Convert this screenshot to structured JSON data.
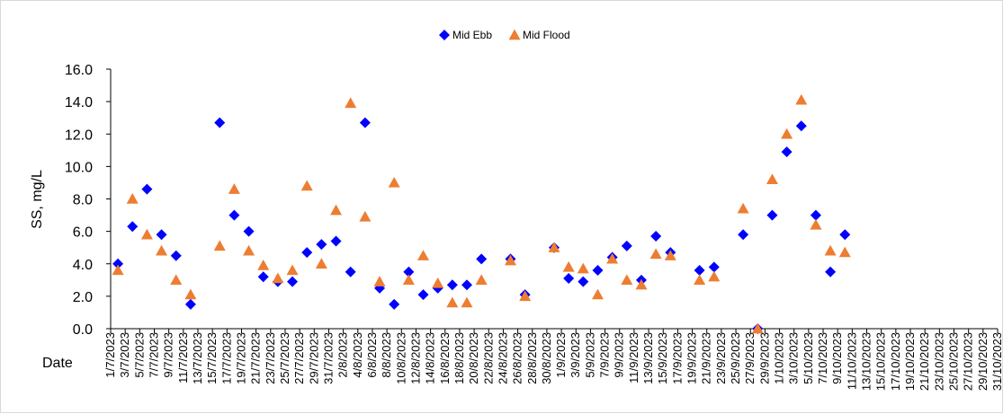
{
  "chart_data": {
    "type": "scatter",
    "xlabel": "Date",
    "ylabel": "SS, mg/L",
    "ylim": [
      0,
      16
    ],
    "yticks": [
      "0.0",
      "2.0",
      "4.0",
      "6.0",
      "8.0",
      "10.0",
      "12.0",
      "14.0",
      "16.0"
    ],
    "xlim": [
      "1/7/2023",
      "31/10/2023"
    ],
    "xtick_labels": [
      "1/7/2023",
      "3/7/2023",
      "5/7/2023",
      "7/7/2023",
      "9/7/2023",
      "11/7/2023",
      "13/7/2023",
      "15/7/2023",
      "17/7/2023",
      "19/7/2023",
      "21/7/2023",
      "23/7/2023",
      "25/7/2023",
      "27/7/2023",
      "29/7/2023",
      "31/7/2023",
      "2/8/2023",
      "4/8/2023",
      "6/8/2023",
      "8/8/2023",
      "10/8/2023",
      "12/8/2023",
      "14/8/2023",
      "16/8/2023",
      "18/8/2023",
      "20/8/2023",
      "22/8/2023",
      "24/8/2023",
      "26/8/2023",
      "28/8/2023",
      "30/8/2023",
      "1/9/2023",
      "3/9/2023",
      "5/9/2023",
      "7/9/2023",
      "9/9/2023",
      "11/9/2023",
      "13/9/2023",
      "15/9/2023",
      "17/9/2023",
      "19/9/2023",
      "21/9/2023",
      "23/9/2023",
      "25/9/2023",
      "27/9/2023",
      "29/9/2023",
      "1/10/2023",
      "3/10/2023",
      "5/10/2023",
      "7/10/2023",
      "9/10/2023",
      "11/10/2023",
      "13/10/2023",
      "15/10/2023",
      "17/10/2023",
      "19/10/2023",
      "21/10/2023",
      "23/10/2023",
      "25/10/2023",
      "27/10/2023",
      "29/10/2023",
      "31/10/2023"
    ],
    "legend_position": "top",
    "series": [
      {
        "name": "Mid Ebb",
        "marker": "diamond",
        "color": "#0000ff",
        "points": [
          {
            "x": "2/7/2023",
            "y": 4.0
          },
          {
            "x": "4/7/2023",
            "y": 6.3
          },
          {
            "x": "6/7/2023",
            "y": 8.6
          },
          {
            "x": "8/7/2023",
            "y": 5.8
          },
          {
            "x": "10/7/2023",
            "y": 4.5
          },
          {
            "x": "12/7/2023",
            "y": 1.5
          },
          {
            "x": "16/7/2023",
            "y": 12.7
          },
          {
            "x": "18/7/2023",
            "y": 7.0
          },
          {
            "x": "20/7/2023",
            "y": 6.0
          },
          {
            "x": "22/7/2023",
            "y": 3.2
          },
          {
            "x": "24/7/2023",
            "y": 2.9
          },
          {
            "x": "26/7/2023",
            "y": 2.9
          },
          {
            "x": "28/7/2023",
            "y": 4.7
          },
          {
            "x": "30/7/2023",
            "y": 5.2
          },
          {
            "x": "1/8/2023",
            "y": 5.4
          },
          {
            "x": "3/8/2023",
            "y": 3.5
          },
          {
            "x": "5/8/2023",
            "y": 12.7
          },
          {
            "x": "7/8/2023",
            "y": 2.5
          },
          {
            "x": "9/8/2023",
            "y": 1.5
          },
          {
            "x": "11/8/2023",
            "y": 3.5
          },
          {
            "x": "13/8/2023",
            "y": 2.1
          },
          {
            "x": "15/8/2023",
            "y": 2.5
          },
          {
            "x": "17/8/2023",
            "y": 2.7
          },
          {
            "x": "19/8/2023",
            "y": 2.7
          },
          {
            "x": "21/8/2023",
            "y": 4.3
          },
          {
            "x": "25/8/2023",
            "y": 4.3
          },
          {
            "x": "27/8/2023",
            "y": 2.1
          },
          {
            "x": "31/8/2023",
            "y": 5.0
          },
          {
            "x": "2/9/2023",
            "y": 3.1
          },
          {
            "x": "4/9/2023",
            "y": 2.9
          },
          {
            "x": "6/9/2023",
            "y": 3.6
          },
          {
            "x": "8/9/2023",
            "y": 4.4
          },
          {
            "x": "10/9/2023",
            "y": 5.1
          },
          {
            "x": "12/9/2023",
            "y": 3.0
          },
          {
            "x": "14/9/2023",
            "y": 5.7
          },
          {
            "x": "16/9/2023",
            "y": 4.7
          },
          {
            "x": "20/9/2023",
            "y": 3.6
          },
          {
            "x": "22/9/2023",
            "y": 3.8
          },
          {
            "x": "26/9/2023",
            "y": 5.8
          },
          {
            "x": "28/9/2023",
            "y": 0.0
          },
          {
            "x": "30/9/2023",
            "y": 7.0
          },
          {
            "x": "2/10/2023",
            "y": 10.9
          },
          {
            "x": "4/10/2023",
            "y": 12.5
          },
          {
            "x": "6/10/2023",
            "y": 7.0
          },
          {
            "x": "8/10/2023",
            "y": 3.5
          },
          {
            "x": "10/10/2023",
            "y": 5.8
          }
        ]
      },
      {
        "name": "Mid Flood",
        "marker": "triangle",
        "color": "#ed7d31",
        "points": [
          {
            "x": "2/7/2023",
            "y": 3.6
          },
          {
            "x": "4/7/2023",
            "y": 8.0
          },
          {
            "x": "6/7/2023",
            "y": 5.8
          },
          {
            "x": "8/7/2023",
            "y": 4.8
          },
          {
            "x": "10/7/2023",
            "y": 3.0
          },
          {
            "x": "12/7/2023",
            "y": 2.1
          },
          {
            "x": "16/7/2023",
            "y": 5.1
          },
          {
            "x": "18/7/2023",
            "y": 8.6
          },
          {
            "x": "20/7/2023",
            "y": 4.8
          },
          {
            "x": "22/7/2023",
            "y": 3.9
          },
          {
            "x": "24/7/2023",
            "y": 3.1
          },
          {
            "x": "26/7/2023",
            "y": 3.6
          },
          {
            "x": "28/7/2023",
            "y": 8.8
          },
          {
            "x": "30/7/2023",
            "y": 4.0
          },
          {
            "x": "1/8/2023",
            "y": 7.3
          },
          {
            "x": "3/8/2023",
            "y": 13.9
          },
          {
            "x": "5/8/2023",
            "y": 6.9
          },
          {
            "x": "7/8/2023",
            "y": 2.9
          },
          {
            "x": "9/8/2023",
            "y": 9.0
          },
          {
            "x": "11/8/2023",
            "y": 3.0
          },
          {
            "x": "13/8/2023",
            "y": 4.5
          },
          {
            "x": "15/8/2023",
            "y": 2.8
          },
          {
            "x": "17/8/2023",
            "y": 1.6
          },
          {
            "x": "19/8/2023",
            "y": 1.6
          },
          {
            "x": "21/8/2023",
            "y": 3.0
          },
          {
            "x": "25/8/2023",
            "y": 4.2
          },
          {
            "x": "27/8/2023",
            "y": 2.0
          },
          {
            "x": "31/8/2023",
            "y": 5.0
          },
          {
            "x": "2/9/2023",
            "y": 3.8
          },
          {
            "x": "4/9/2023",
            "y": 3.7
          },
          {
            "x": "6/9/2023",
            "y": 2.1
          },
          {
            "x": "8/9/2023",
            "y": 4.3
          },
          {
            "x": "10/9/2023",
            "y": 3.0
          },
          {
            "x": "12/9/2023",
            "y": 2.7
          },
          {
            "x": "14/9/2023",
            "y": 4.6
          },
          {
            "x": "16/9/2023",
            "y": 4.5
          },
          {
            "x": "20/9/2023",
            "y": 3.0
          },
          {
            "x": "22/9/2023",
            "y": 3.2
          },
          {
            "x": "26/9/2023",
            "y": 7.4
          },
          {
            "x": "28/9/2023",
            "y": 0.0
          },
          {
            "x": "30/9/2023",
            "y": 9.2
          },
          {
            "x": "2/10/2023",
            "y": 12.0
          },
          {
            "x": "4/10/2023",
            "y": 14.1
          },
          {
            "x": "6/10/2023",
            "y": 6.4
          },
          {
            "x": "8/10/2023",
            "y": 4.8
          },
          {
            "x": "10/10/2023",
            "y": 4.7
          }
        ]
      }
    ]
  }
}
